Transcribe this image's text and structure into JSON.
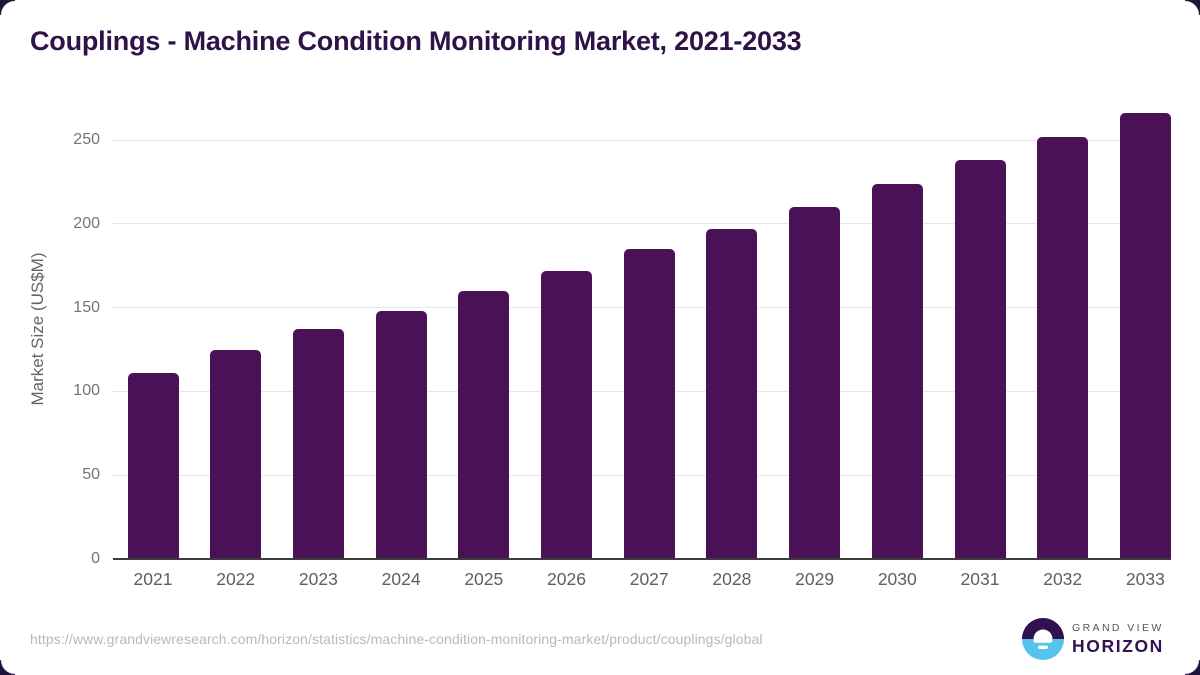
{
  "chart": {
    "title": "Couplings - Machine Condition Monitoring Market, 2021-2033"
  },
  "chart_data": {
    "type": "bar",
    "title": "Couplings - Machine Condition Monitoring Market, 2021-2033",
    "categories": [
      "2021",
      "2022",
      "2023",
      "2024",
      "2025",
      "2026",
      "2027",
      "2028",
      "2029",
      "2030",
      "2031",
      "2032",
      "2033"
    ],
    "values": [
      111,
      125,
      137,
      148,
      160,
      172,
      185,
      197,
      210,
      224,
      238,
      252,
      266
    ],
    "xlabel": "",
    "ylabel": "Market Size (US$M)",
    "ylim": [
      0,
      275
    ],
    "yticks": [
      0,
      50,
      100,
      150,
      200,
      250
    ],
    "grid": true,
    "legend": "none",
    "bar_color": "#4a1157"
  },
  "footer": {
    "source_url": "https://www.grandviewresearch.com/horizon/statistics/machine-condition-monitoring-market/product/couplings/global"
  },
  "logo": {
    "line1": "GRAND VIEW",
    "line2": "HORIZON"
  },
  "colors": {
    "title_text": "#2e1248",
    "bar_fill": "#4a1157",
    "gridline": "#e6e6e6",
    "axis_line": "#3c3c3c",
    "tick_text": "#5e5e5e",
    "source_text": "#b9b9b9",
    "logo_purple": "#321150",
    "logo_blue": "#56c3ef",
    "corner_dark": "#21123a"
  }
}
